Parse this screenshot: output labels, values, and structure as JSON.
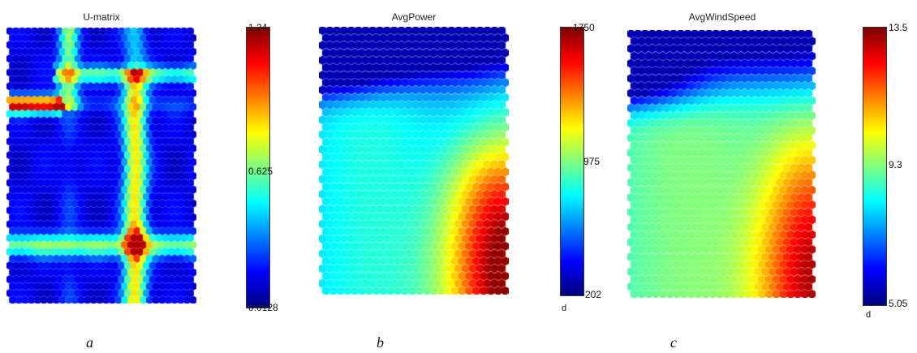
{
  "chart_data": [
    {
      "type": "heatmap",
      "title": "U-matrix",
      "colormap": "jet",
      "colorbar": {
        "min": 0.0128,
        "mid": 0.625,
        "max": 1.24,
        "ticks": [
          "1.24",
          "0.625",
          "0.0128"
        ],
        "unit": ""
      },
      "panel_label": "a"
    },
    {
      "type": "heatmap",
      "title": "AvgPower",
      "colormap": "jet",
      "colorbar": {
        "min": 202,
        "mid": 975,
        "max": 1750,
        "ticks": [
          "1750",
          "975",
          "202"
        ],
        "unit": "d"
      },
      "panel_label": "b"
    },
    {
      "type": "heatmap",
      "title": "AvgWindSpeed",
      "colormap": "jet",
      "colorbar": {
        "min": 5.05,
        "mid": 9.3,
        "max": 13.5,
        "ticks": [
          "13.5",
          "9.3",
          "5.05"
        ],
        "unit": "d"
      },
      "panel_label": "c"
    }
  ]
}
